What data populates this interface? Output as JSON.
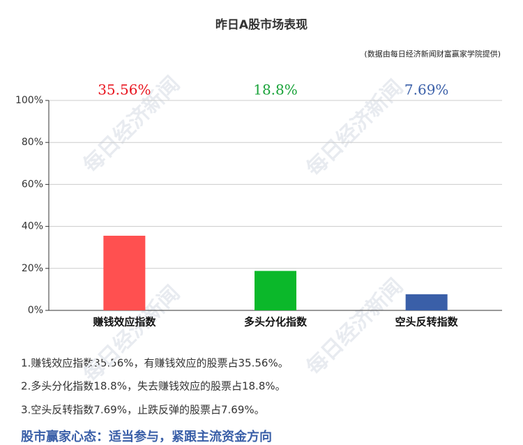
{
  "chart_data": {
    "type": "bar",
    "title": "昨日A股市场表现",
    "subtitle": "(数据由每日经济新闻财富赢家学院提供)",
    "categories": [
      "赚钱效应指数",
      "多头分化指数",
      "空头反转指数"
    ],
    "values": [
      35.56,
      18.8,
      7.69
    ],
    "value_labels": [
      "35.56%",
      "18.8%",
      "7.69%"
    ],
    "colors": [
      "#ff5050",
      "#0bb82a",
      "#3a5fa8"
    ],
    "label_colors": [
      "#e8141e",
      "#1aa33a",
      "#3a5fa8"
    ],
    "ylim": [
      0,
      100
    ],
    "yticks": [
      {
        "value": 0,
        "label": "0%"
      },
      {
        "value": 20,
        "label": "20%"
      },
      {
        "value": 40,
        "label": "40%"
      },
      {
        "value": 60,
        "label": "60%"
      },
      {
        "value": 80,
        "label": "80%"
      },
      {
        "value": 100,
        "label": "100%"
      }
    ],
    "grid": true,
    "notes": [
      "1.赚钱效应指数35.56%，有赚钱效应的股票占35.56%。",
      "2.多头分化指数18.8%，失去赚钱效应的股票占18.8%。",
      "3.空头反转指数7.69%，止跌反弹的股票占7.69%。"
    ],
    "footer": "股市赢家心态：适当参与，紧跟主流资金方向",
    "watermark": "每日经济新闻"
  }
}
